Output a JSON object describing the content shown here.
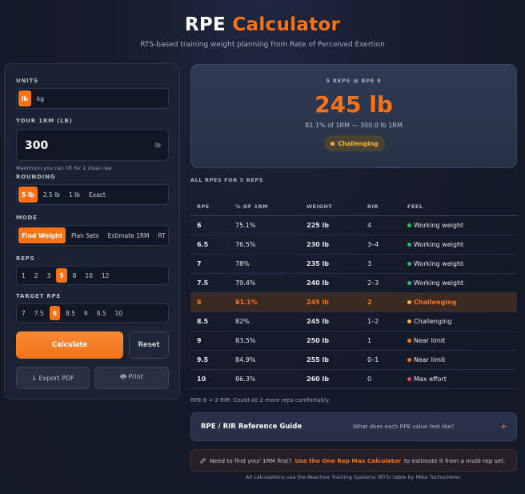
{
  "header": {
    "title_main": "RPE",
    "title_accent": "Calculator",
    "subtitle": "RTS-based training weight planning from Rate of Perceived Exertion"
  },
  "form": {
    "units_label": "UNITS",
    "units": [
      "lb",
      "kg"
    ],
    "units_selected": "lb",
    "one_rm_label": "YOUR 1RM (LB)",
    "one_rm_value": "300",
    "one_rm_unit": "lb",
    "one_rm_hint": "Maximum you can lift for 1 clean rep",
    "rounding_label": "ROUNDING",
    "rounding": [
      "5 lb",
      "2.5 lb",
      "1 lb",
      "Exact"
    ],
    "rounding_selected": "5 lb",
    "mode_label": "MODE",
    "modes": [
      "Find Weight",
      "Plan Sets",
      "Estimate 1RM",
      "RT"
    ],
    "mode_selected": "Find Weight",
    "reps_label": "REPS",
    "reps": [
      "1",
      "2",
      "3",
      "5",
      "8",
      "10",
      "12"
    ],
    "reps_selected": "5",
    "rpe_label": "TARGET RPE",
    "rpes": [
      "7",
      "7.5",
      "8",
      "8.5",
      "9",
      "9.5",
      "10"
    ],
    "rpe_selected": "8",
    "calculate": "Calculate",
    "reset": "Reset",
    "export": "↓ Export PDF",
    "print": "🖶 Print"
  },
  "result": {
    "caption": "5 REPS @ RPE 8",
    "weight": "245 lb",
    "percent_line": "81.1% of 1RM — 300.0 lb 1RM",
    "badge": "Challenging",
    "badge_color": "#f5b431"
  },
  "table": {
    "section_label": "ALL RPES FOR 5 REPS",
    "headers": [
      "RPE",
      "% OF 1RM",
      "WEIGHT",
      "RIR",
      "FEEL"
    ],
    "rows": [
      {
        "rpe": "6",
        "pct": "75.1%",
        "weight": "225 lb",
        "rir": "4",
        "feel": "Working weight",
        "color": "#22c55e"
      },
      {
        "rpe": "6.5",
        "pct": "76.5%",
        "weight": "230 lb",
        "rir": "3–4",
        "feel": "Working weight",
        "color": "#22c55e"
      },
      {
        "rpe": "7",
        "pct": "78%",
        "weight": "235 lb",
        "rir": "3",
        "feel": "Working weight",
        "color": "#22c55e"
      },
      {
        "rpe": "7.5",
        "pct": "79.4%",
        "weight": "240 lb",
        "rir": "2–3",
        "feel": "Working weight",
        "color": "#22c55e"
      },
      {
        "rpe": "8",
        "pct": "81.1%",
        "weight": "245 lb",
        "rir": "2",
        "feel": "Challenging",
        "color": "#f5b431",
        "highlight": true
      },
      {
        "rpe": "8.5",
        "pct": "82%",
        "weight": "245 lb",
        "rir": "1–2",
        "feel": "Challenging",
        "color": "#f5b431"
      },
      {
        "rpe": "9",
        "pct": "83.5%",
        "weight": "250 lb",
        "rir": "1",
        "feel": "Near limit",
        "color": "#f97316"
      },
      {
        "rpe": "9.5",
        "pct": "84.9%",
        "weight": "255 lb",
        "rir": "0–1",
        "feel": "Near limit",
        "color": "#f97316"
      },
      {
        "rpe": "10",
        "pct": "86.3%",
        "weight": "260 lb",
        "rir": "0",
        "feel": "Max effort",
        "color": "#f43f5e"
      }
    ],
    "note": "RPE 8 = 2 RIR: Could do 2 more reps comfortably."
  },
  "guide": {
    "title": "RPE / RIR Reference Guide",
    "question": "What does each RPE value feel like?",
    "toggle": "+"
  },
  "tip": {
    "icon": "link-icon",
    "before": "Need to find your 1RM first?",
    "link": "Use the One Rep Max Calculator",
    "after": "to estimate it from a multi-rep set."
  },
  "footer": "All calculations use the Reactive Training Systems (RTS) table by Mike Tuchscherer.",
  "colors": {
    "accent": "#f97316",
    "working": "#22c55e",
    "challenging": "#f5b431",
    "near_limit": "#f97316",
    "max_effort": "#f43f5e"
  }
}
